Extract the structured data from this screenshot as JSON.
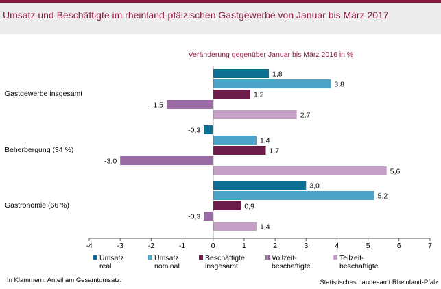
{
  "title": "Umsatz und Beschäftigte im rheinland-pfälzischen Gastgewerbe von Januar bis März 2017",
  "footnote": "In Klammern: Anteil am Gesamtumsatz.",
  "source": "Statistisches Landesamt Rheinland-Pfalz",
  "colors": {
    "umsatz_real": "#0e6f93",
    "umsatz_nominal": "#4ba3c7",
    "beschaeftigte": "#6b1d4a",
    "vollzeit": "#9a6aa4",
    "teilzeit": "#c4a0c6",
    "title": "#8a1a3c"
  },
  "chart_data": {
    "type": "bar",
    "orientation": "horizontal",
    "subtitle": "Veränderung gegenüber Januar bis März 2016 in %",
    "categories": [
      "Gastgewerbe insgesamt",
      "Beherbergung (34 %)",
      "Gastronomie (66 %)"
    ],
    "series": [
      {
        "name": "Umsatz real",
        "values": [
          1.8,
          -0.3,
          3.0
        ],
        "labels": [
          "1,8",
          "-0,3",
          "3,0"
        ]
      },
      {
        "name": "Umsatz nominal",
        "values": [
          3.8,
          1.4,
          5.2
        ],
        "labels": [
          "3,8",
          "1,4",
          "5,2"
        ]
      },
      {
        "name": "Beschäftigte insgesamt",
        "values": [
          1.2,
          1.7,
          0.9
        ],
        "labels": [
          "1,2",
          "1,7",
          "0,9"
        ]
      },
      {
        "name": "Vollzeit-beschäftigte",
        "values": [
          -1.5,
          -3.0,
          -0.3
        ],
        "labels": [
          "-1,5",
          "-3,0",
          "-0,3"
        ]
      },
      {
        "name": "Teilzeit-beschäftigte",
        "values": [
          2.7,
          5.6,
          1.4
        ],
        "labels": [
          "2,7",
          "5,6",
          "1,4"
        ]
      }
    ],
    "legend": [
      {
        "line1": "Umsatz",
        "line2": "real"
      },
      {
        "line1": "Umsatz",
        "line2": "nominal"
      },
      {
        "line1": "Beschäftigte",
        "line2": "insgesamt"
      },
      {
        "line1": "Vollzeit-",
        "line2": "beschäftigte"
      },
      {
        "line1": "Teilzeit-",
        "line2": "beschäftigte"
      }
    ],
    "xlim": [
      -4,
      7
    ],
    "xticks": [
      "-4",
      "-3",
      "-2",
      "-1",
      "0",
      "1",
      "2",
      "3",
      "4",
      "5",
      "6",
      "7"
    ],
    "grid": false,
    "legend_position": "bottom"
  }
}
